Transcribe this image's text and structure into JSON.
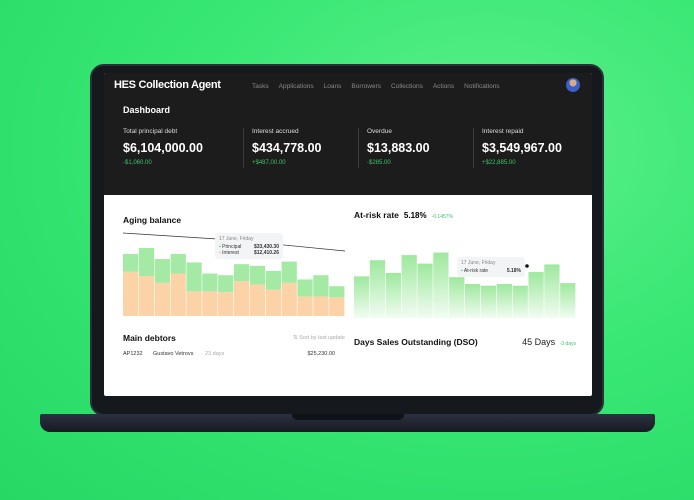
{
  "app": {
    "title": "HES Collection Agent",
    "nav": [
      "Tasks",
      "Applications",
      "Loans",
      "Borrowers",
      "Collections",
      "Actions",
      "Notifications"
    ]
  },
  "page_title": "Dashboard",
  "kpis": [
    {
      "label": "Total principal debt",
      "value": "$6,104,000.00",
      "delta": "-$1,060.00"
    },
    {
      "label": "Interest accrued",
      "value": "$434,778.00",
      "delta": "+$487,00.00"
    },
    {
      "label": "Overdue",
      "value": "$13,883.00",
      "delta": "-$285.00"
    },
    {
      "label": "Interest repaid",
      "value": "$3,549,967.00",
      "delta": "+$22,885.00"
    }
  ],
  "aging": {
    "title": "Aging balance",
    "tooltip": {
      "date": "17 June, Friday",
      "principal_label": "Principal",
      "principal": "$33,430.30",
      "interest_label": "Interest",
      "interest": "$12,410.26"
    }
  },
  "risk": {
    "title": "At-risk rate",
    "value": "5.18%",
    "delta": "-0.1457%",
    "tooltip": {
      "date": "17 June, Friday",
      "label": "At-risk rate",
      "value": "5.18%"
    }
  },
  "debtors": {
    "title": "Main debtors",
    "sort": "Sort by last update",
    "rows": [
      {
        "id": "AP1232",
        "name": "Gustavo Vetrovs",
        "age": "23 days",
        "amount": "$25,230.00"
      }
    ]
  },
  "dso": {
    "title": "Days Sales Outstanding (DSO)",
    "value": "45 Days",
    "delta": "-3 days"
  },
  "colors": {
    "green": "#3fc36a",
    "bar_green": "#9ee89e",
    "bar_orange": "#fbd3a6"
  },
  "chart_data": [
    {
      "type": "bar",
      "stacked": true,
      "title": "Aging balance",
      "series": [
        {
          "name": "Principal",
          "values": [
            21,
            33,
            28,
            23,
            34,
            21,
            20,
            20,
            22,
            22,
            25,
            20,
            25,
            13
          ]
        },
        {
          "name": "Interest",
          "values": [
            52,
            47,
            39,
            50,
            29,
            29,
            28,
            41,
            37,
            31,
            39,
            23,
            23,
            22
          ]
        }
      ]
    },
    {
      "type": "bar",
      "title": "At-risk rate",
      "values": [
        49,
        68,
        53,
        74,
        64,
        77,
        48,
        40,
        38,
        40,
        38,
        54,
        63,
        41
      ]
    }
  ]
}
